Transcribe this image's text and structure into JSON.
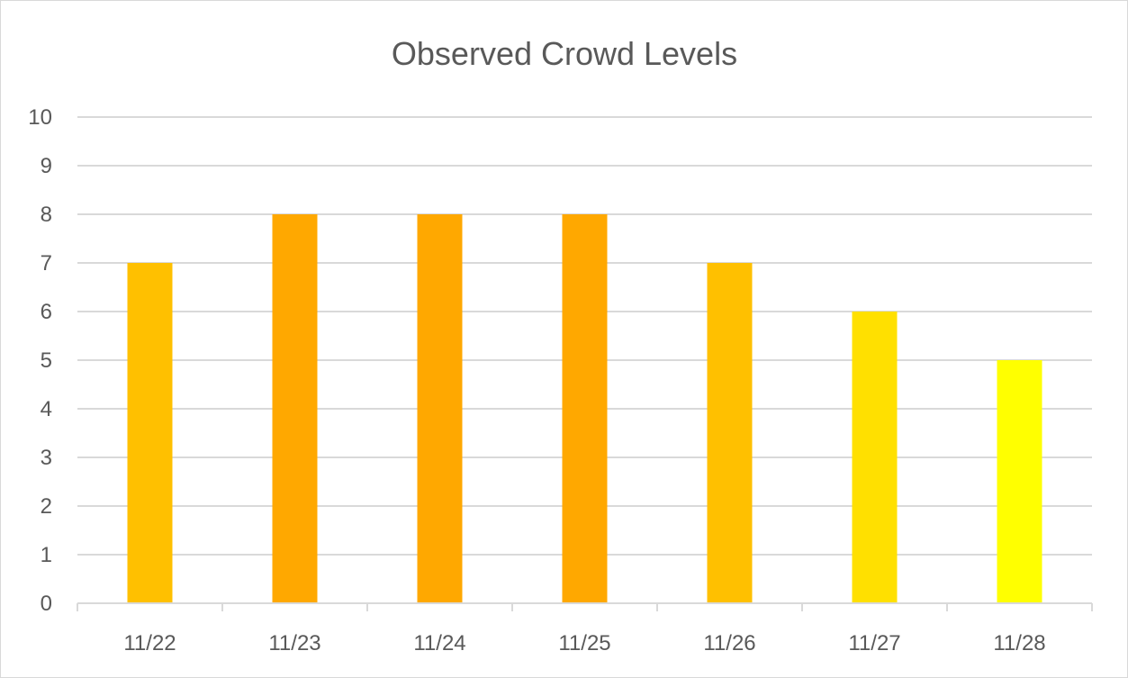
{
  "chart_data": {
    "type": "bar",
    "title": "Observed Crowd Levels",
    "xlabel": "",
    "ylabel": "",
    "categories": [
      "11/22",
      "11/23",
      "11/24",
      "11/25",
      "11/26",
      "11/27",
      "11/28"
    ],
    "values": [
      7,
      8,
      8,
      8,
      7,
      6,
      5
    ],
    "bar_colors": [
      "#FFC000",
      "#FFA800",
      "#FFA800",
      "#FFA800",
      "#FFC000",
      "#FFE000",
      "#FFFF00"
    ],
    "ylim": [
      0,
      10
    ],
    "yticks": [
      0,
      1,
      2,
      3,
      4,
      5,
      6,
      7,
      8,
      9,
      10
    ],
    "grid": true,
    "legend": "none"
  }
}
